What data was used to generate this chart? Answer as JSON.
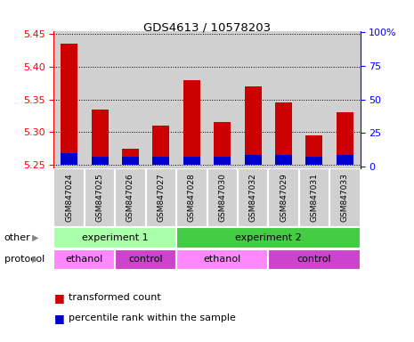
{
  "title": "GDS4613 / 10578203",
  "samples": [
    "GSM847024",
    "GSM847025",
    "GSM847026",
    "GSM847027",
    "GSM847028",
    "GSM847030",
    "GSM847032",
    "GSM847029",
    "GSM847031",
    "GSM847033"
  ],
  "red_values": [
    5.435,
    5.335,
    5.275,
    5.31,
    5.38,
    5.315,
    5.37,
    5.345,
    5.295,
    5.33
  ],
  "blue_values": [
    5.268,
    5.263,
    5.262,
    5.263,
    5.263,
    5.263,
    5.265,
    5.265,
    5.262,
    5.265
  ],
  "base": 5.25,
  "ylim_left": [
    5.245,
    5.455
  ],
  "yticks_left": [
    5.25,
    5.3,
    5.35,
    5.4,
    5.45
  ],
  "ylim_right": [
    -1,
    101
  ],
  "yticks_right": [
    0,
    25,
    50,
    75,
    100
  ],
  "ytick_labels_right": [
    "0",
    "25",
    "50",
    "75",
    "100%"
  ],
  "red_color": "#cc0000",
  "blue_color": "#0000cc",
  "bar_width": 0.55,
  "exp1_color": "#aaffaa",
  "exp2_color": "#44cc44",
  "ethanol_color": "#ff88ff",
  "control_color": "#cc44cc",
  "protocol_row": [
    {
      "label": "ethanol",
      "start": 0,
      "end": 2,
      "color": "#ff88ff"
    },
    {
      "label": "control",
      "start": 2,
      "end": 4,
      "color": "#cc44cc"
    },
    {
      "label": "ethanol",
      "start": 4,
      "end": 7,
      "color": "#ff88ff"
    },
    {
      "label": "control",
      "start": 7,
      "end": 10,
      "color": "#cc44cc"
    }
  ],
  "sample_bg": "#d0d0d0",
  "legend_red_label": "transformed count",
  "legend_blue_label": "percentile rank within the sample",
  "other_label": "other",
  "protocol_label": "protocol"
}
